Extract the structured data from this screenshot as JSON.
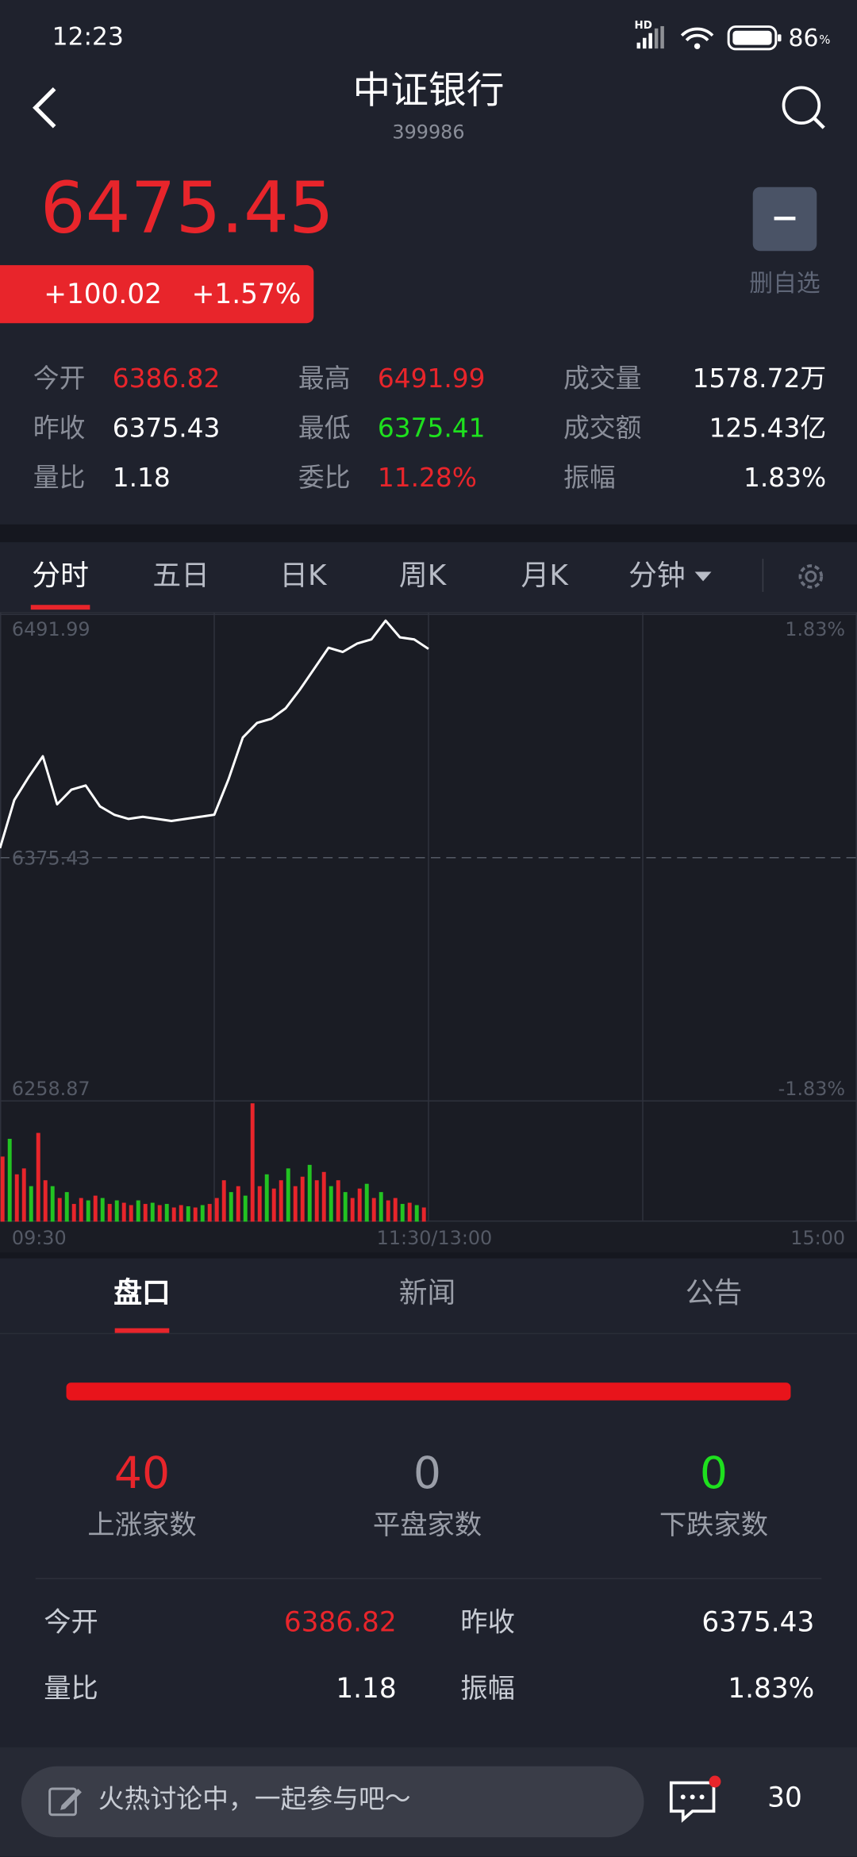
{
  "status": {
    "time": "12:23",
    "network": "HD",
    "battery_level": "86",
    "battery_unit": "%"
  },
  "header": {
    "title": "中证银行",
    "code": "399986"
  },
  "quote": {
    "price": "6475.45",
    "change": "+100.02",
    "change_pct": "+1.57%",
    "watch_label": "删自选"
  },
  "stats": [
    {
      "label": "今开",
      "value": "6386.82",
      "tone": "up"
    },
    {
      "label": "最高",
      "value": "6491.99",
      "tone": "up"
    },
    {
      "label": "成交量",
      "value": "1578.72万",
      "tone": "flat"
    },
    {
      "label": "昨收",
      "value": "6375.43",
      "tone": "flat"
    },
    {
      "label": "最低",
      "value": "6375.41",
      "tone": "down"
    },
    {
      "label": "成交额",
      "value": "125.43亿",
      "tone": "flat"
    },
    {
      "label": "量比",
      "value": "1.18",
      "tone": "flat"
    },
    {
      "label": "委比",
      "value": "11.28%",
      "tone": "up"
    },
    {
      "label": "振幅",
      "value": "1.83%",
      "tone": "flat"
    }
  ],
  "chart_tabs": [
    "分时",
    "五日",
    "日K",
    "周K",
    "月K",
    "分钟"
  ],
  "chart_data": {
    "type": "line",
    "color": "#ffffff",
    "xlim": [
      0,
      240
    ],
    "xticks": [
      {
        "value": 0,
        "label": "09:30"
      },
      {
        "value": 120,
        "label": "11:30/13:00"
      },
      {
        "value": 240,
        "label": "15:00"
      }
    ],
    "ylim": [
      6258.87,
      6491.99
    ],
    "yticks": [
      6491.99,
      6375.43,
      6258.87
    ],
    "y2lim": [
      -1.83,
      1.83
    ],
    "y2ticks": [
      {
        "value": 1.83,
        "label": "1.83%"
      },
      {
        "value": -1.83,
        "label": "-1.83%"
      }
    ],
    "x": [
      0,
      4,
      8,
      12,
      16,
      20,
      24,
      28,
      32,
      36,
      40,
      44,
      48,
      52,
      56,
      60,
      64,
      68,
      72,
      76,
      80,
      84,
      88,
      92,
      96,
      100,
      104,
      108,
      112,
      116,
      120
    ],
    "values": [
      6380,
      6403,
      6414,
      6424,
      6401,
      6408,
      6410,
      6400,
      6396,
      6394,
      6395,
      6394,
      6393,
      6394,
      6395,
      6396,
      6413,
      6433,
      6440,
      6442,
      6447,
      6456,
      6466,
      6476,
      6474,
      6478,
      6480,
      6489,
      6481,
      6480,
      6475.45
    ],
    "volume": {
      "up_color": "#e8252b",
      "down_color": "#22c322",
      "vlim": [
        0,
        100
      ],
      "x": [
        0,
        2,
        4,
        6,
        8,
        10,
        12,
        14,
        16,
        18,
        20,
        22,
        24,
        26,
        28,
        30,
        32,
        34,
        36,
        38,
        40,
        42,
        44,
        46,
        48,
        50,
        52,
        54,
        56,
        58,
        60,
        62,
        64,
        66,
        68,
        70,
        72,
        74,
        76,
        78,
        80,
        82,
        84,
        86,
        88,
        90,
        92,
        94,
        96,
        98,
        100,
        102,
        104,
        106,
        108,
        110,
        112,
        114,
        116,
        118
      ],
      "values": [
        55,
        70,
        40,
        45,
        30,
        75,
        35,
        30,
        20,
        25,
        15,
        20,
        18,
        22,
        20,
        15,
        18,
        16,
        14,
        18,
        15,
        16,
        14,
        15,
        12,
        14,
        13,
        12,
        14,
        15,
        20,
        35,
        25,
        30,
        22,
        100,
        30,
        40,
        28,
        35,
        45,
        30,
        38,
        48,
        35,
        42,
        30,
        35,
        25,
        20,
        28,
        32,
        20,
        25,
        18,
        20,
        15,
        16,
        14,
        12
      ],
      "up": [
        true,
        false,
        true,
        true,
        false,
        true,
        true,
        false,
        true,
        false,
        true,
        true,
        false,
        true,
        false,
        true,
        false,
        true,
        true,
        false,
        true,
        false,
        true,
        false,
        true,
        true,
        false,
        true,
        false,
        true,
        true,
        true,
        false,
        true,
        false,
        true,
        true,
        false,
        true,
        true,
        false,
        true,
        true,
        false,
        true,
        true,
        false,
        true,
        false,
        true,
        true,
        false,
        true,
        false,
        true,
        true,
        false,
        true,
        false,
        true
      ]
    }
  },
  "panel_tabs": [
    "盘口",
    "新闻",
    "公告"
  ],
  "breadth": [
    {
      "value": "40",
      "label": "上涨家数",
      "tone": "up"
    },
    {
      "value": "0",
      "label": "平盘家数",
      "tone": "gray"
    },
    {
      "value": "0",
      "label": "下跌家数",
      "tone": "down"
    }
  ],
  "details": [
    {
      "label": "今开",
      "value": "6386.82",
      "tone": "up"
    },
    {
      "label": "昨收",
      "value": "6375.43",
      "tone": "flat"
    },
    {
      "label": "量比",
      "value": "1.18",
      "tone": "flat"
    },
    {
      "label": "振幅",
      "value": "1.83%",
      "tone": "flat"
    }
  ],
  "bottom": {
    "placeholder": "火热讨论中，一起参与吧～",
    "comments": "30"
  }
}
